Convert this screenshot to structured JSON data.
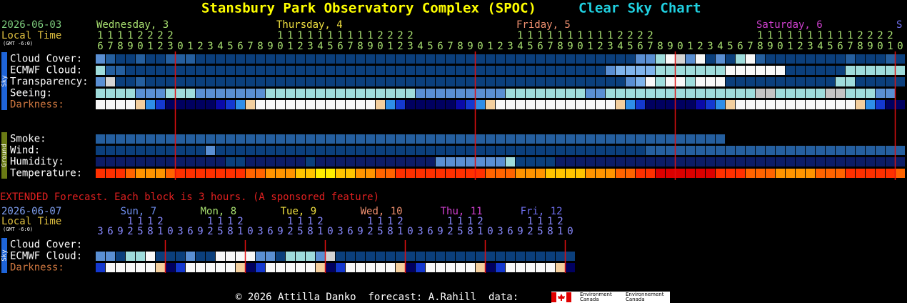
{
  "header": {
    "title": "Stansbury Park Observatory Complex (SPOC)",
    "subtitle": "Clear Sky Chart"
  },
  "palette": {
    "a": "#0b3f7c",
    "b": "#255f9f",
    "c": "#5a8fd3",
    "d": "#7fb4ec",
    "e": "#9fdcdc",
    "f": "#d4d4d4",
    "g": "#c4c4c4",
    "w": "#f8f8f8",
    "p": "#f3cf9e",
    "l": "#2f8ee8",
    "m": "#1438d0",
    "n": "#0a0aa8",
    "k": "#000060",
    "h": "#0c1c66",
    "r": "#ff3000",
    "o": "#ff6400",
    "q": "#ff9400",
    "u": "#ffc400",
    "v": "#ffee00",
    "R": "#dc0000"
  },
  "hourly": {
    "date": "2026-06-03",
    "local_time": "Local Time",
    "timezone": "(GMT -6:0)",
    "days": [
      {
        "label": "Wednesday, 3",
        "color": "#a8e070"
      },
      {
        "label": "Thursday, 4",
        "color": "#f0e040"
      },
      {
        "label": "Friday, 5",
        "color": "#f09070"
      },
      {
        "label": "Saturday, 6",
        "color": "#d040d0"
      },
      {
        "label": "S",
        "color": "#7070f0"
      }
    ],
    "hour_tens": "11112222          11111111112222          11111111112222          11111111112222 ",
    "hour_units": "678901230123456789012345678901234567890123456789012345678901234567890123456789010",
    "groups": [
      {
        "label": "Sky",
        "color": "#1e64d8",
        "rows": [
          {
            "label": "Cloud Cover:",
            "cells": "cbaabaabbbaaaaaaaaaaaaaaaaaaaaaaaaaaaaaaaaaaaaaaaaaaaaccewfcwacaewbaaaaaaaabaaaba"
          },
          {
            "label": "ECMWF Cloud:",
            "cells": "ebbaaaaaaaaaaaaaaaaaaaaaaaaaaaaaaaaaaaaaaaaaaaaaaaacddddeeeeeeewwwwwwaaaaaaeeeeee"
          },
          {
            "label": "Transparency:",
            "cells": "cfaabaaaaaaaaaaaaaaaaaaaaaaaaaaaaaaaaaaaaaaaaaaaaaaaacdwewwewwwaaaaaaaaaaaeeaaaaa"
          },
          {
            "label": "Seeing:",
            "cells": "eeeeccceeeccccccceeeeeeeeeeeeeeeccccccccceeeeeeeecceeeeeeeeeeeeeeeggeeeeeggeeecc"
          },
          {
            "label": "Darkness:",
            "color": "#d07840",
            "cells": "wwwwplmkkkkknmlpwwwwwwwwwwwwplmkkkkknmlpwwwwwwwwwwwwplmkkkkknmlpwwwwwwwwwwwwplmkk"
          }
        ]
      },
      {
        "label": "Ground",
        "color": "#6a7a14",
        "rows": [
          {
            "label": "Smoke:",
            "cells": "bbbbbbbbbbbbbbbbbbbbbbbbbbbbbbbbbbbbbbbbbbbbbbbbbbbbbbbbbbbbbbb                  "
          },
          {
            "label": "Wind:",
            "cells": "aaaaaaaaaaacaaaaaaaaaaaaaaaaaaaaaaaaaaaaaaaaaaaaaaaaaaabbbbbbbbbbbbbbbbbbbbbbbbbb"
          },
          {
            "label": "Humidity:",
            "cells": "hhhhhhhhhhhhhaahhhhhhahhhhhhhhhhhhccccccceaaaahhhhhhhhhhhhhhhhhhhhhhhhhhhhhhhhhhh"
          },
          {
            "label": "Temperature:",
            "cells": "rrroqqqorrrrrrrooqqquuvvuuqqoorrrrrrrrroooqqquuuuqqqoorrRRRRRRrrroooqqqqooorrrrro"
          }
        ]
      }
    ]
  },
  "extended": {
    "notice": "EXTENDED Forecast. Each block is 3 hours. (A sponsored feature)",
    "date": "2026-06-07",
    "local_time": "Local Time",
    "timezone": "(GMT -6:0)",
    "days": [
      {
        "label": "Sun, 7",
        "color": "#6f8ff0"
      },
      {
        "label": "Mon, 8",
        "color": "#a8e070"
      },
      {
        "label": "Tue, 9",
        "color": "#f0e040"
      },
      {
        "label": "Wed, 10",
        "color": "#f09070"
      },
      {
        "label": "Thu, 11",
        "color": "#d040d0"
      },
      {
        "label": "Fri, 12",
        "color": "#7070f0"
      }
    ],
    "hour_tens": "   1112    1112    1112    1112    1112    1112 ",
    "hour_units": "369258103692581036925810369258103692581036925810",
    "groups": [
      {
        "label": "Sky",
        "color": "#1e64d8",
        "rows": [
          {
            "label": "Cloud Cover:"
          },
          {
            "label": "ECMWF Cloud:",
            "cells": "ccaeewaaacaawwwwccaeeecfaaaaaaaaaaaaaaaaaaaaaaaa"
          },
          {
            "label": "Darkness:",
            "color": "#d07840",
            "cells": "mwwwwwpkmwwwwwpkmwwwwwpkmwwwwwpkmwwwwwpkmwwwwwpk"
          }
        ]
      }
    ]
  },
  "footer": {
    "credit": "© 2026 Attilla Danko  forecast: A.Rahill  data:",
    "logo": [
      "Environment",
      "Canada",
      "Environnement",
      "Canada"
    ]
  }
}
